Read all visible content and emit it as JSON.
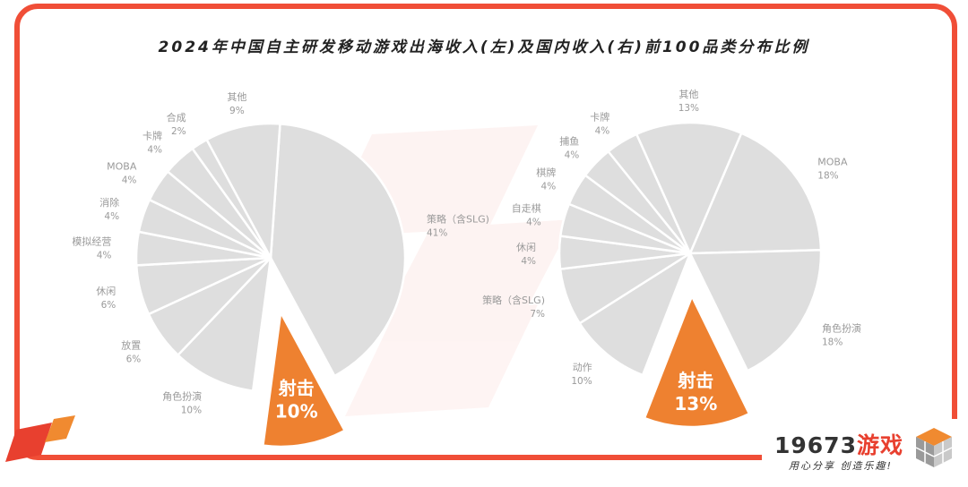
{
  "title": "2024年中国自主研发移动游戏出海收入(左)及国内收入(右)前100品类分布比例",
  "chart_data": [
    {
      "type": "pie",
      "title": "出海收入(左)",
      "categories": [
        "策略（含SLG)",
        "射击",
        "角色扮演",
        "放置",
        "休闲",
        "模拟经营",
        "消除",
        "MOBA",
        "卡牌",
        "合成",
        "其他"
      ],
      "values": [
        41,
        10,
        10,
        6,
        6,
        4,
        4,
        4,
        4,
        2,
        9
      ],
      "labels": [
        "41%",
        "10%",
        "10%",
        "6%",
        "6%",
        "4%",
        "4%",
        "4%",
        "4%",
        "2%",
        "9%"
      ],
      "highlight": "射击",
      "highlight_color": "#ee8130",
      "slice_color": "#dedede"
    },
    {
      "type": "pie",
      "title": "国内收入(右)",
      "categories": [
        "射击",
        "动作",
        "策略（含SLG)",
        "休闲",
        "自走棋",
        "棋牌",
        "捕鱼",
        "卡牌",
        "其他",
        "MOBA",
        "角色扮演"
      ],
      "values": [
        13,
        10,
        7,
        4,
        4,
        4,
        4,
        4,
        13,
        18,
        18
      ],
      "labels": [
        "13%",
        "10%",
        "7%",
        "4%",
        "4%",
        "4%",
        "4%",
        "4%",
        "13%",
        "18%",
        "18%"
      ],
      "highlight": "射击",
      "highlight_color": "#ee8130",
      "slice_color": "#dedede"
    }
  ],
  "brand": {
    "name_num": "19673",
    "name_cn": "游戏",
    "slogan": "用心分享 创造乐趣!"
  }
}
